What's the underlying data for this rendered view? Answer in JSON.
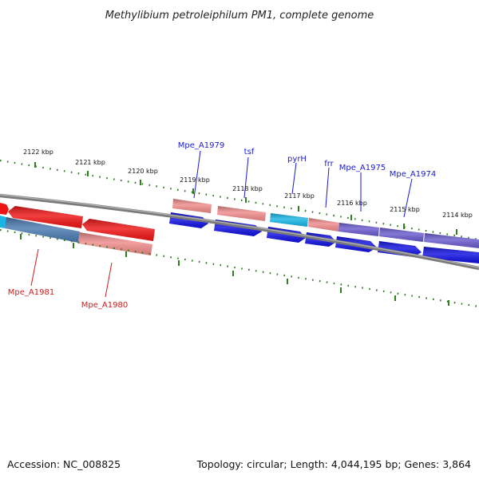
{
  "title": "Methylibium petroleiphilum PM1, complete genome",
  "footer": {
    "accession": "Accession: NC_008825",
    "summary": "Topology: circular; Length: 4,044,195 bp; Genes: 3,864"
  },
  "colors": {
    "backbone": "#7a7a7a",
    "tick": "#2e7d1f",
    "label_forward": "#1a1ad0",
    "label_reverse": "#d01a1a",
    "cds_blue": "#1010e0",
    "cds_red": "#ee1414",
    "cds_pink": "#ef8a8a",
    "cds_cyan": "#18b4e4",
    "cds_purple": "#6a5acd",
    "cds_steel": "#4a7ab0"
  },
  "axis": {
    "unit": "kbp",
    "kbp_labels": [
      "2122 kbp",
      "2121 kbp",
      "2120 kbp",
      "2119 kbp",
      "2118 kbp",
      "2117 kbp",
      "2116 kbp",
      "2115 kbp",
      "2114 kbp"
    ]
  },
  "genes": [
    {
      "name": "Mpe_A1979",
      "strand": "forward"
    },
    {
      "name": "tsf",
      "strand": "forward"
    },
    {
      "name": "pyrH",
      "strand": "forward"
    },
    {
      "name": "frr",
      "strand": "forward"
    },
    {
      "name": "Mpe_A1975",
      "strand": "forward"
    },
    {
      "name": "Mpe_A1974",
      "strand": "forward"
    },
    {
      "name": "Mpe_A1981",
      "strand": "reverse"
    },
    {
      "name": "Mpe_A1980",
      "strand": "reverse"
    }
  ]
}
